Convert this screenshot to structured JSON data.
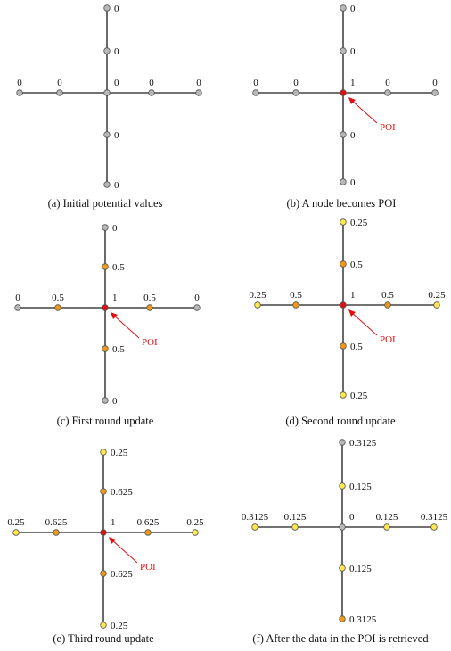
{
  "poi_label": "POI",
  "colors": {
    "grey": "#b8b8b8",
    "yellow": "#ffe84a",
    "orange": "#f09a18",
    "red": "#e01010",
    "poi_text": "#e01010"
  },
  "panels": [
    {
      "caption": "(a) Initial potential values",
      "center": {
        "label": "0",
        "color": "grey"
      },
      "up": [
        {
          "label": "0",
          "color": "grey"
        },
        {
          "label": "0",
          "color": "grey"
        }
      ],
      "down": [
        {
          "label": "0",
          "color": "grey"
        },
        {
          "label": "0",
          "color": "grey"
        }
      ],
      "left": [
        {
          "label": "0",
          "color": "grey"
        },
        {
          "label": "0",
          "color": "grey"
        }
      ],
      "right": [
        {
          "label": "0",
          "color": "grey"
        },
        {
          "label": "0",
          "color": "grey"
        }
      ],
      "poi": false
    },
    {
      "caption": "(b) A node becomes POI",
      "center": {
        "label": "1",
        "color": "red"
      },
      "up": [
        {
          "label": "0",
          "color": "grey"
        },
        {
          "label": "0",
          "color": "grey"
        }
      ],
      "down": [
        {
          "label": "0",
          "color": "grey"
        },
        {
          "label": "0",
          "color": "grey"
        }
      ],
      "left": [
        {
          "label": "0",
          "color": "grey"
        },
        {
          "label": "0",
          "color": "grey"
        }
      ],
      "right": [
        {
          "label": "0",
          "color": "grey"
        },
        {
          "label": "0",
          "color": "grey"
        }
      ],
      "poi": true
    },
    {
      "caption": "(c) First round update",
      "center": {
        "label": "1",
        "color": "red"
      },
      "up": [
        {
          "label": "0.5",
          "color": "orange"
        },
        {
          "label": "0",
          "color": "grey"
        }
      ],
      "down": [
        {
          "label": "0.5",
          "color": "orange"
        },
        {
          "label": "0",
          "color": "grey"
        }
      ],
      "left": [
        {
          "label": "0.5",
          "color": "orange"
        },
        {
          "label": "0",
          "color": "grey"
        }
      ],
      "right": [
        {
          "label": "0.5",
          "color": "orange"
        },
        {
          "label": "0",
          "color": "grey"
        }
      ],
      "poi": true
    },
    {
      "caption": "(d) Second round update",
      "center": {
        "label": "1",
        "color": "red"
      },
      "up": [
        {
          "label": "0.5",
          "color": "orange"
        },
        {
          "label": "0.25",
          "color": "yellow"
        }
      ],
      "down": [
        {
          "label": "0.5",
          "color": "orange"
        },
        {
          "label": "0.25",
          "color": "yellow"
        }
      ],
      "left": [
        {
          "label": "0.5",
          "color": "orange"
        },
        {
          "label": "0.25",
          "color": "yellow"
        }
      ],
      "right": [
        {
          "label": "0.5",
          "color": "orange"
        },
        {
          "label": "0.25",
          "color": "yellow"
        }
      ],
      "poi": true
    },
    {
      "caption": "(e) Third round update",
      "center": {
        "label": "1",
        "color": "red"
      },
      "up": [
        {
          "label": "0.625",
          "color": "orange"
        },
        {
          "label": "0.25",
          "color": "yellow"
        }
      ],
      "down": [
        {
          "label": "0.625",
          "color": "orange"
        },
        {
          "label": "0.25",
          "color": "yellow"
        }
      ],
      "left": [
        {
          "label": "0.625",
          "color": "orange"
        },
        {
          "label": "0.25",
          "color": "yellow"
        }
      ],
      "right": [
        {
          "label": "0.625",
          "color": "orange"
        },
        {
          "label": "0.25",
          "color": "yellow"
        }
      ],
      "poi": true
    },
    {
      "caption": "(f) After the data in the POI is retrieved",
      "center": {
        "label": "0",
        "color": "grey"
      },
      "up": [
        {
          "label": "0.125",
          "color": "yellow"
        },
        {
          "label": "0.3125",
          "color": "grey"
        }
      ],
      "down": [
        {
          "label": "0.125",
          "color": "yellow"
        },
        {
          "label": "0.3125",
          "color": "orange"
        }
      ],
      "left": [
        {
          "label": "0.125",
          "color": "yellow"
        },
        {
          "label": "0.3125",
          "color": "yellow"
        }
      ],
      "right": [
        {
          "label": "0.125",
          "color": "yellow"
        },
        {
          "label": "0.3125",
          "color": "yellow"
        }
      ],
      "poi": false
    }
  ]
}
